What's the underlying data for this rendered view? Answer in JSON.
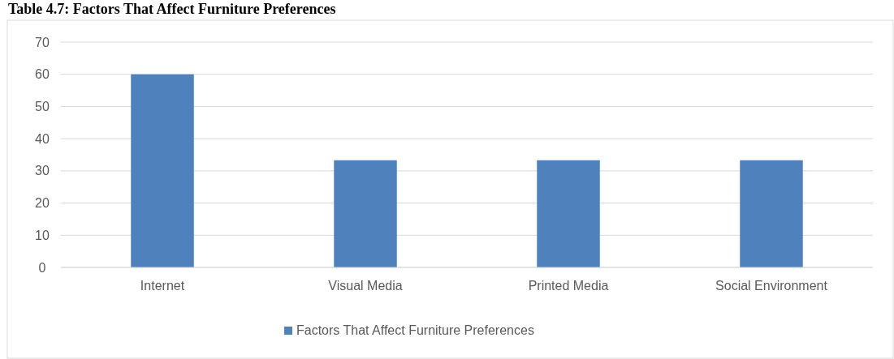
{
  "chart_data": {
    "type": "bar",
    "title": "Table 4.7: Factors That Affect Furniture Preferences",
    "categories": [
      "Internet",
      "Visual Media",
      "Printed Media",
      "Social Environment"
    ],
    "series": [
      {
        "name": "Factors That Affect Furniture Preferences",
        "color": "#4f81bd",
        "values": [
          60,
          33.3,
          33.3,
          33.3
        ]
      }
    ],
    "ylim": [
      0,
      70
    ],
    "yticks": [
      0,
      10,
      20,
      30,
      40,
      50,
      60,
      70
    ],
    "grid": "y",
    "legend": "bottom"
  }
}
